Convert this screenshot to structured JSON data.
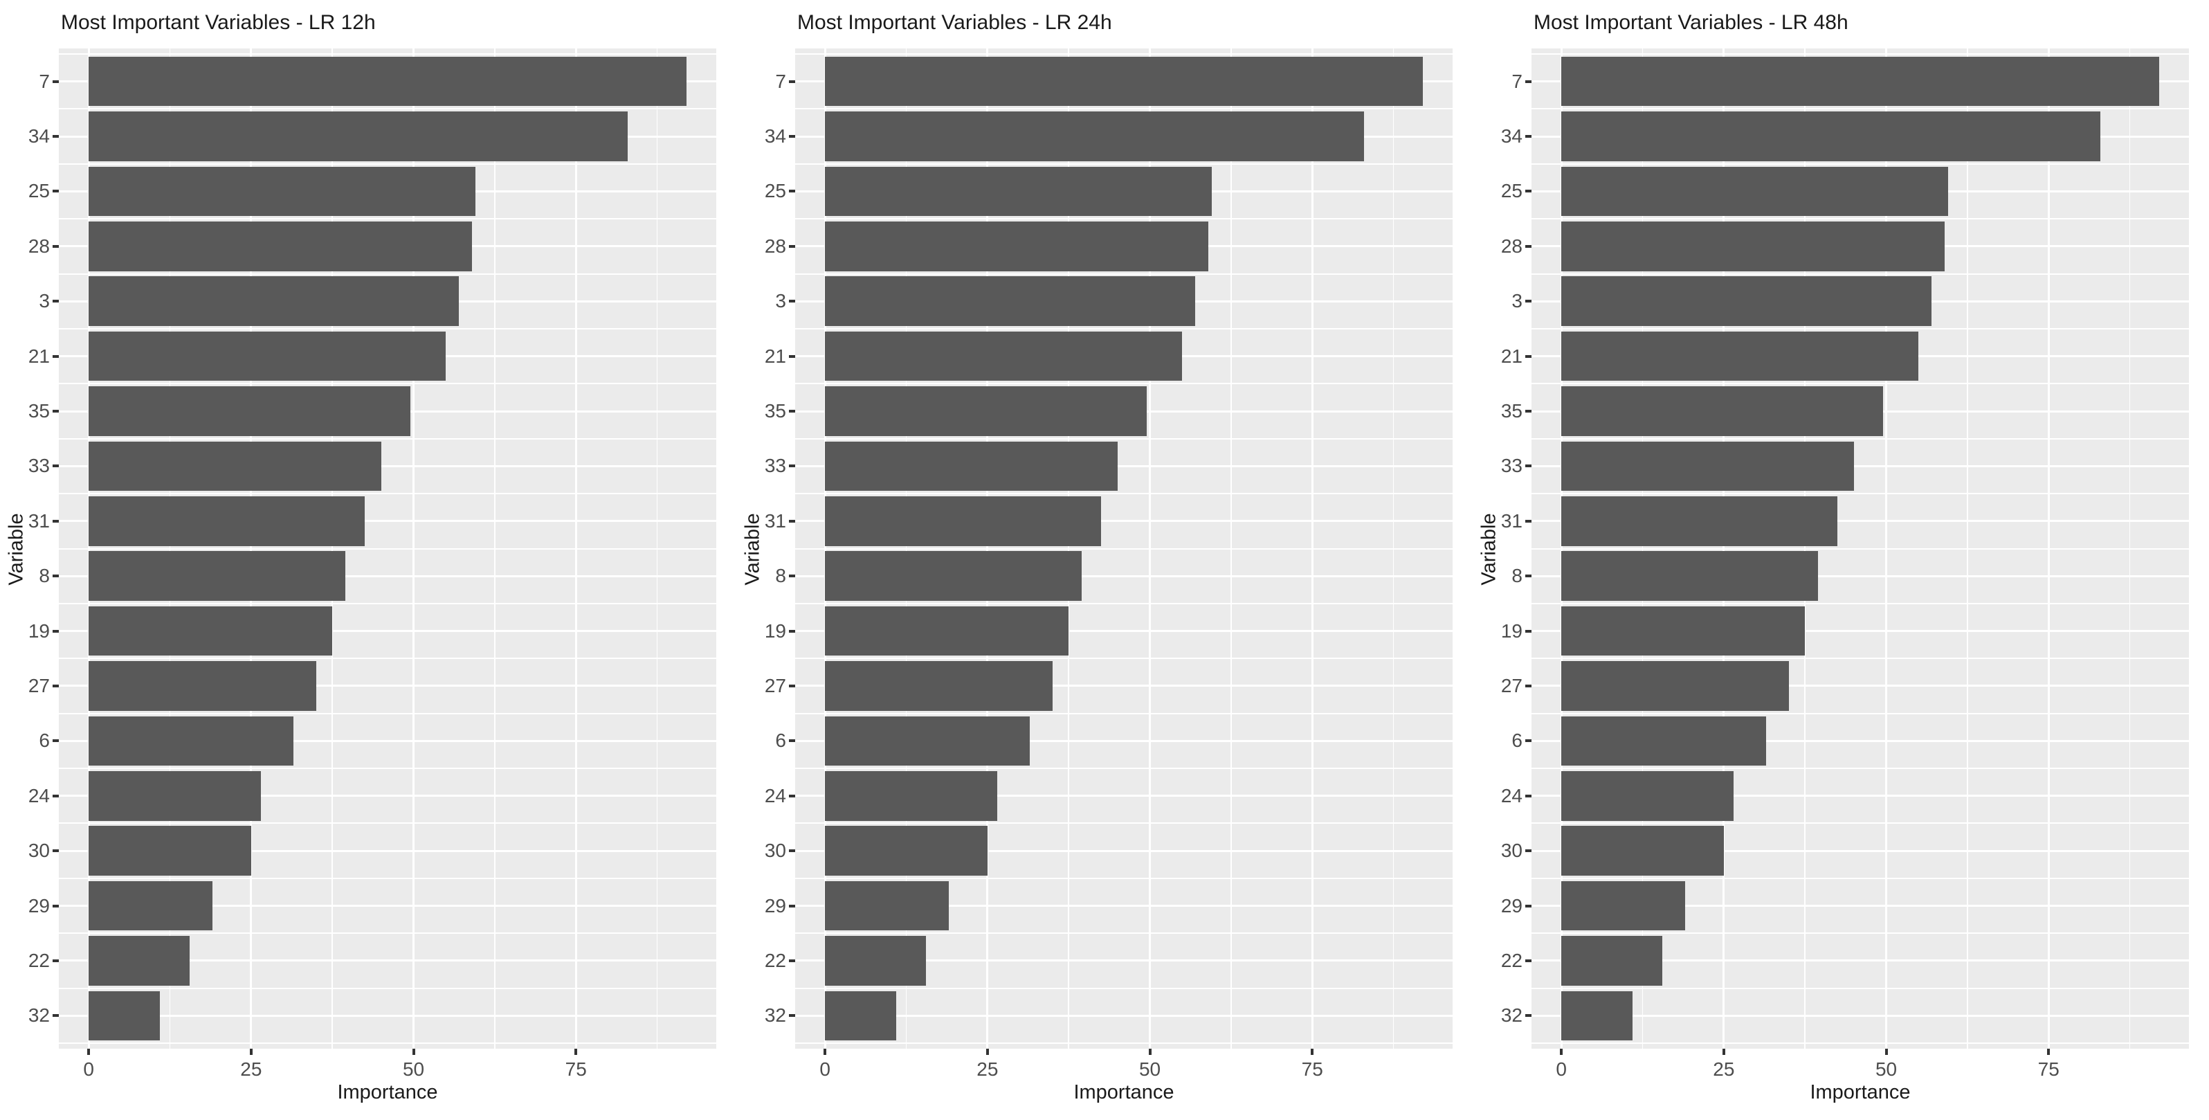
{
  "colors": {
    "bar_fill": "#595959",
    "panel_background": "#EBEBEB",
    "gridline": "#FFFFFF",
    "axis_tick_mark": "#333333",
    "axis_text": "#4D4D4D",
    "title_text": "#1A1A1A",
    "page_background": "#FFFFFF"
  },
  "chart_data": [
    {
      "type": "bar",
      "orientation": "horizontal",
      "title": "Most Important Variables - LR 12h",
      "xlabel": "Importance",
      "ylabel": "Variable",
      "categories": [
        "7",
        "34",
        "25",
        "28",
        "3",
        "21",
        "35",
        "33",
        "31",
        "8",
        "19",
        "27",
        "6",
        "24",
        "30",
        "29",
        "22",
        "32"
      ],
      "values": [
        92,
        83,
        59.5,
        59,
        57,
        55,
        49.5,
        45,
        42.5,
        39.5,
        37.5,
        35,
        31.5,
        26.5,
        25,
        19,
        15.5,
        11
      ],
      "x_ticks": [
        0,
        25,
        50,
        75
      ],
      "xlim": [
        0,
        96.6
      ],
      "grid": "white major and minor gridlines on grey panel",
      "legend": "none"
    },
    {
      "type": "bar",
      "orientation": "horizontal",
      "title": "Most Important Variables - LR 24h",
      "xlabel": "Importance",
      "ylabel": "Variable",
      "categories": [
        "7",
        "34",
        "25",
        "28",
        "3",
        "21",
        "35",
        "33",
        "31",
        "8",
        "19",
        "27",
        "6",
        "24",
        "30",
        "29",
        "22",
        "32"
      ],
      "values": [
        92,
        83,
        59.5,
        59,
        57,
        55,
        49.5,
        45,
        42.5,
        39.5,
        37.5,
        35,
        31.5,
        26.5,
        25,
        19,
        15.5,
        11
      ],
      "x_ticks": [
        0,
        25,
        50,
        75
      ],
      "xlim": [
        0,
        96.6
      ],
      "grid": "white major and minor gridlines on grey panel",
      "legend": "none"
    },
    {
      "type": "bar",
      "orientation": "horizontal",
      "title": "Most Important Variables - LR 48h",
      "xlabel": "Importance",
      "ylabel": "Variable",
      "categories": [
        "7",
        "34",
        "25",
        "28",
        "3",
        "21",
        "35",
        "33",
        "31",
        "8",
        "19",
        "27",
        "6",
        "24",
        "30",
        "29",
        "22",
        "32"
      ],
      "values": [
        92,
        83,
        59.5,
        59,
        57,
        55,
        49.5,
        45,
        42.5,
        39.5,
        37.5,
        35,
        31.5,
        26.5,
        25,
        19,
        15.5,
        11
      ],
      "x_ticks": [
        0,
        25,
        50,
        75
      ],
      "xlim": [
        0,
        96.6
      ],
      "grid": "white major and minor gridlines on grey panel",
      "legend": "none"
    }
  ]
}
